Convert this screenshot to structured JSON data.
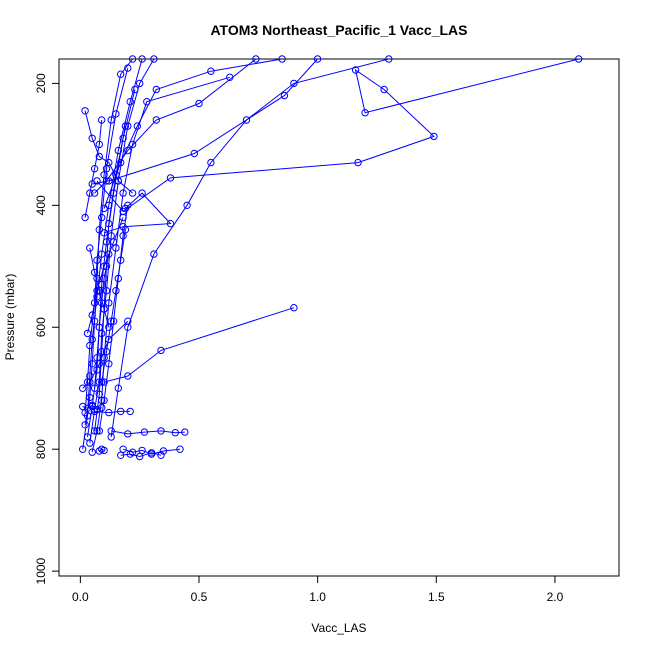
{
  "chart_data": {
    "type": "line",
    "title": "ATOM3 Northeast_Pacific_1 Vacc_LAS",
    "xlabel": "Vacc_LAS",
    "ylabel": "Pressure (mbar)",
    "xlim": [
      -0.09,
      2.27
    ],
    "ylim": [
      1008,
      160
    ],
    "y_inverted": true,
    "grid": false,
    "color": "#0000ff",
    "marker": "open-circle",
    "xticks": [
      {
        "value": 0.0,
        "label": "0.0"
      },
      {
        "value": 0.5,
        "label": "0.5"
      },
      {
        "value": 1.0,
        "label": "1.0"
      },
      {
        "value": 1.5,
        "label": "1.5"
      },
      {
        "value": 2.0,
        "label": "2.0"
      }
    ],
    "yticks": [
      {
        "value": 200,
        "label": "200"
      },
      {
        "value": 400,
        "label": "400"
      },
      {
        "value": 600,
        "label": "600"
      },
      {
        "value": 800,
        "label": "800"
      },
      {
        "value": 1000,
        "label": "1000"
      }
    ],
    "series": [
      {
        "x": [
          0.05,
          0.07,
          0.09,
          0.1,
          0.12,
          0.15,
          0.18,
          0.22,
          0.28,
          0.63
        ],
        "y": [
          805,
          770,
          720,
          650,
          560,
          470,
          380,
          300,
          230,
          190
        ]
      },
      {
        "x": [
          0.04,
          0.06,
          0.08,
          0.09,
          0.11,
          0.13,
          0.16,
          0.2,
          0.25,
          0.31
        ],
        "y": [
          790,
          735,
          690,
          610,
          540,
          450,
          360,
          270,
          200,
          160
        ]
      },
      {
        "x": [
          0.02,
          0.04,
          0.05,
          0.06,
          0.07,
          0.08,
          0.1,
          0.13,
          0.17,
          0.22
        ],
        "y": [
          760,
          715,
          660,
          590,
          520,
          440,
          350,
          260,
          185,
          160
        ]
      },
      {
        "x": [
          0.01,
          0.03,
          0.04,
          0.05,
          0.07,
          0.09,
          0.12,
          0.16,
          0.21,
          0.26
        ],
        "y": [
          800,
          745,
          680,
          620,
          550,
          480,
          400,
          310,
          230,
          160
        ]
      },
      {
        "x": [
          0.03,
          0.05,
          0.07,
          0.08,
          0.09,
          0.11,
          0.14,
          0.18,
          0.23
        ],
        "y": [
          780,
          730,
          670,
          600,
          530,
          460,
          380,
          290,
          210
        ]
      },
      {
        "x": [
          0.06,
          0.08,
          0.09,
          0.1,
          0.11,
          0.12,
          0.15,
          0.19
        ],
        "y": [
          770,
          710,
          640,
          570,
          500,
          430,
          350,
          270
        ]
      },
      {
        "x": [
          0.02,
          0.03,
          0.04,
          0.06,
          0.07,
          0.09,
          0.11,
          0.15,
          0.2
        ],
        "y": [
          740,
          690,
          630,
          560,
          490,
          420,
          340,
          250,
          175
        ]
      },
      {
        "x": [
          0.08,
          0.1,
          0.12,
          0.14,
          0.16,
          0.18,
          0.2
        ],
        "y": [
          770,
          720,
          660,
          590,
          520,
          450,
          400
        ]
      },
      {
        "x": [
          0.13,
          0.2,
          0.27,
          0.34,
          0.4,
          0.44
        ],
        "y": [
          770,
          775,
          772,
          770,
          773,
          772
        ]
      },
      {
        "x": [
          0.18,
          0.22,
          0.26,
          0.3,
          0.35,
          0.42
        ],
        "y": [
          800,
          805,
          802,
          808,
          803,
          800
        ]
      },
      {
        "x": [
          0.17,
          0.21,
          0.25,
          0.3,
          0.34
        ],
        "y": [
          810,
          808,
          812,
          806,
          810
        ]
      },
      {
        "x": [
          0.06,
          0.12,
          0.17,
          0.21
        ],
        "y": [
          738,
          740,
          738,
          738
        ]
      },
      {
        "x": [
          0.01,
          0.03,
          0.05,
          0.07,
          0.09
        ],
        "y": [
          730,
          733,
          728,
          735,
          732
        ]
      },
      {
        "x": [
          0.08,
          0.09,
          0.1
        ],
        "y": [
          803,
          800,
          802
        ]
      },
      {
        "x": [
          0.13,
          0.16,
          0.2,
          0.31,
          0.45,
          0.55,
          0.7,
          0.9,
          1.3
        ],
        "y": [
          780,
          700,
          600,
          480,
          400,
          330,
          260,
          200,
          160
        ]
      },
      {
        "x": [
          0.1,
          0.2,
          0.34,
          0.9
        ],
        "y": [
          690,
          680,
          638,
          568
        ]
      },
      {
        "x": [
          0.01,
          0.04,
          0.08,
          0.12,
          0.2
        ],
        "y": [
          700,
          690,
          660,
          620,
          590
        ]
      },
      {
        "x": [
          0.07,
          0.18,
          0.38,
          1.17,
          1.49,
          1.28,
          1.16,
          1.2,
          2.1
        ],
        "y": [
          360,
          410,
          355,
          330,
          287,
          210,
          178,
          248,
          160
        ]
      },
      {
        "x": [
          0.05,
          0.12,
          0.48,
          0.86,
          1.0
        ],
        "y": [
          365,
          360,
          315,
          220,
          160
        ]
      },
      {
        "x": [
          0.1,
          0.18,
          0.38,
          0.26,
          0.19
        ],
        "y": [
          445,
          435,
          430,
          380,
          405
        ]
      },
      {
        "x": [
          0.06,
          0.11,
          0.2,
          0.32,
          0.5,
          0.74
        ],
        "y": [
          380,
          360,
          310,
          260,
          233,
          160
        ]
      },
      {
        "x": [
          0.1,
          0.17,
          0.24,
          0.32,
          0.55,
          0.85
        ],
        "y": [
          405,
          330,
          270,
          210,
          180,
          160
        ]
      },
      {
        "x": [
          0.02,
          0.05,
          0.08,
          0.12,
          0.16,
          0.22
        ],
        "y": [
          245,
          290,
          320,
          330,
          360,
          380
        ]
      },
      {
        "x": [
          0.04,
          0.06,
          0.08,
          0.1,
          0.12
        ],
        "y": [
          470,
          510,
          540,
          570,
          600
        ]
      },
      {
        "x": [
          0.03,
          0.05,
          0.07,
          0.1,
          0.14,
          0.18
        ],
        "y": [
          610,
          580,
          540,
          500,
          460,
          420
        ]
      },
      {
        "x": [
          0.06,
          0.07,
          0.08,
          0.09,
          0.1,
          0.12
        ],
        "y": [
          700,
          650,
          600,
          560,
          520,
          480
        ]
      },
      {
        "x": [
          0.02,
          0.04,
          0.06,
          0.08,
          0.09
        ],
        "y": [
          420,
          380,
          340,
          300,
          260
        ]
      },
      {
        "x": [
          0.09,
          0.11,
          0.13,
          0.15,
          0.17,
          0.19
        ],
        "y": [
          690,
          640,
          590,
          540,
          490,
          440
        ]
      }
    ]
  }
}
